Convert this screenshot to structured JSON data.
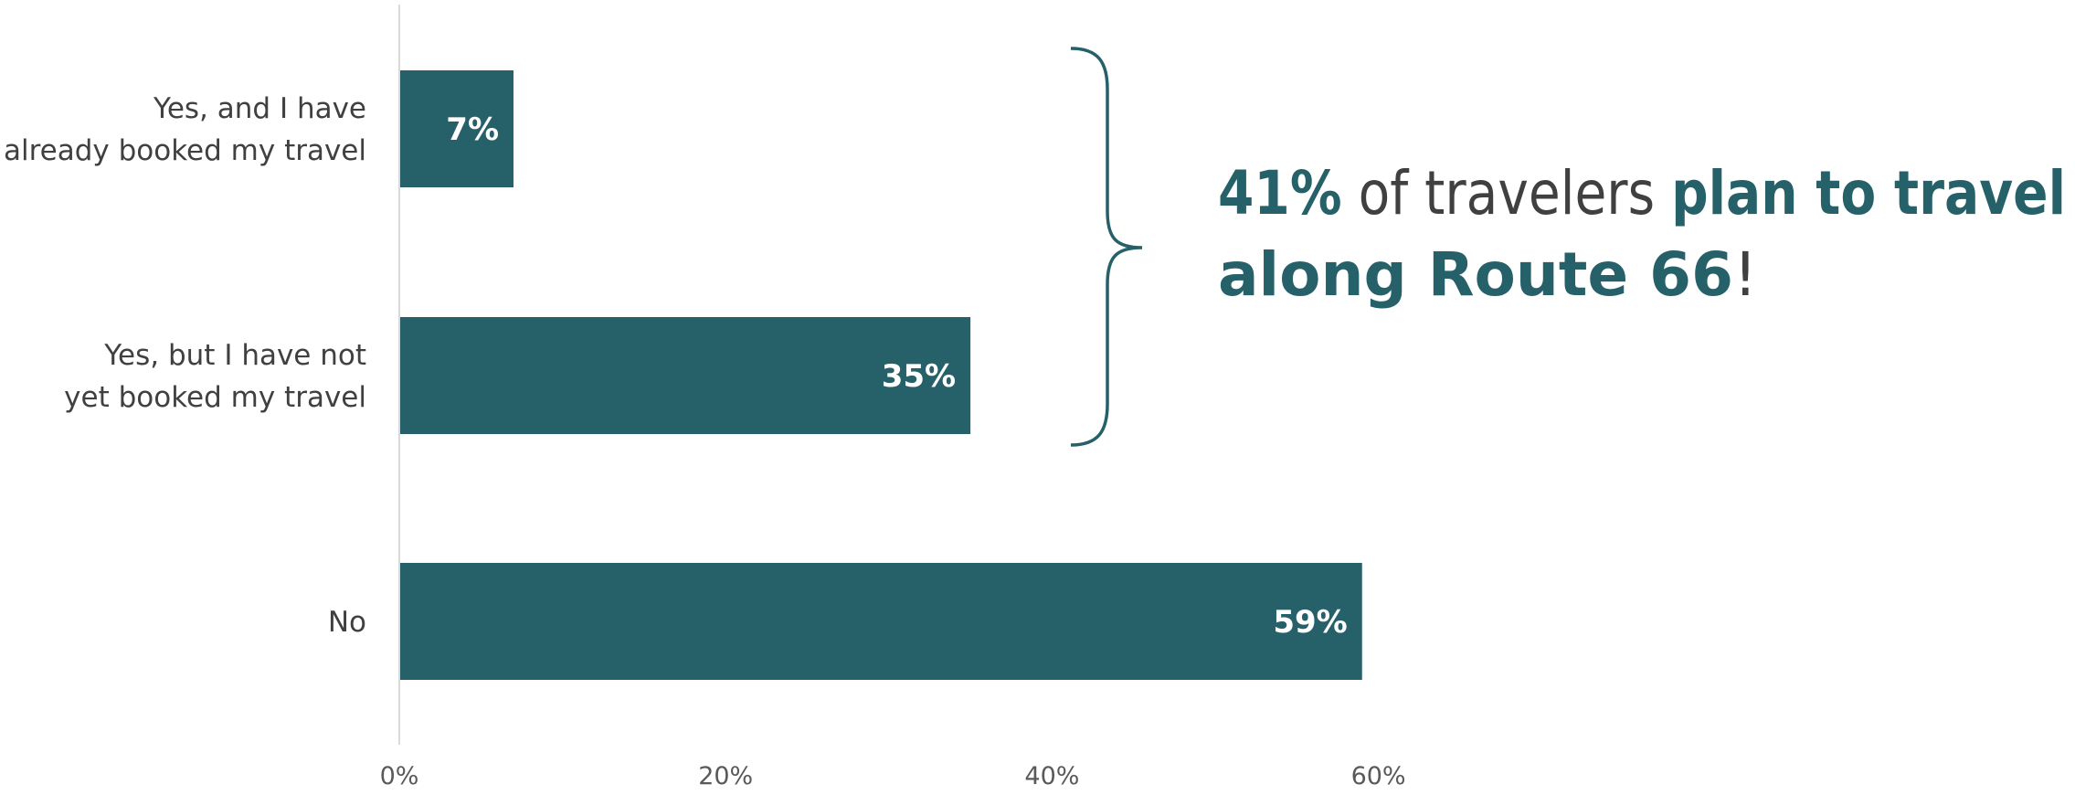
{
  "chart_data": {
    "type": "bar",
    "orientation": "horizontal",
    "categories": [
      [
        "Yes, and I have",
        "already booked my travel"
      ],
      [
        "Yes, but I have not",
        "yet booked my travel"
      ],
      [
        "No"
      ]
    ],
    "values": [
      7,
      35,
      59
    ],
    "data_labels": [
      "7%",
      "35%",
      "59%"
    ],
    "x_ticks": [
      "0%",
      "20%",
      "40%",
      "60%"
    ],
    "xlim": [
      0,
      60
    ],
    "title": "",
    "xlabel": "",
    "ylabel": "",
    "grid": false,
    "legend": "none",
    "annotation": {
      "bracket_covers": [
        "Yes, and I have already booked my travel",
        "Yes, but I have not yet booked my travel"
      ],
      "line1": [
        {
          "text": "41%",
          "style": "bold"
        },
        {
          "text": " of travelers ",
          "style": "normal"
        },
        {
          "text": "plan to travel",
          "style": "bold"
        }
      ],
      "line2": [
        {
          "text": "along Route 66",
          "style": "bold"
        },
        {
          "text": "!",
          "style": "normal"
        }
      ]
    }
  },
  "colors": {
    "bar": "#266169",
    "accent": "#266169",
    "text": "#404040",
    "axis": "#d9d9d9"
  }
}
